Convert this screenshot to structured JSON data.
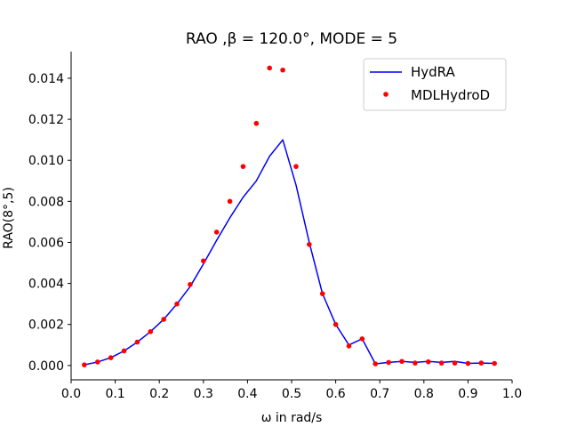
{
  "chart_data": {
    "type": "line",
    "title": "RAO ,β = 120.0°, MODE = 5",
    "xlabel": "ω in rad/s",
    "ylabel": "RAO(8°,5)",
    "xlim": [
      0.0,
      1.0
    ],
    "ylim": [
      -0.0007,
      0.0153
    ],
    "xticks": [
      0.0,
      0.1,
      0.2,
      0.3,
      0.4,
      0.5,
      0.6,
      0.7,
      0.8,
      0.9,
      1.0
    ],
    "xtick_labels": [
      "0.0",
      "0.1",
      "0.2",
      "0.3",
      "0.4",
      "0.5",
      "0.6",
      "0.7",
      "0.8",
      "0.9",
      "1.0"
    ],
    "yticks": [
      0.0,
      0.002,
      0.004,
      0.006,
      0.008,
      0.01,
      0.012,
      0.014
    ],
    "ytick_labels": [
      "0.000",
      "0.002",
      "0.004",
      "0.006",
      "0.008",
      "0.010",
      "0.012",
      "0.014"
    ],
    "legend_position": "top-right",
    "series": [
      {
        "name": "HydRA",
        "style": "line",
        "color": "#0000ff",
        "x": [
          0.03,
          0.06,
          0.09,
          0.12,
          0.15,
          0.18,
          0.21,
          0.24,
          0.27,
          0.3,
          0.33,
          0.36,
          0.39,
          0.42,
          0.45,
          0.48,
          0.51,
          0.54,
          0.57,
          0.6,
          0.63,
          0.66,
          0.69,
          0.72,
          0.75,
          0.78,
          0.81,
          0.84,
          0.87,
          0.9,
          0.93,
          0.96
        ],
        "y": [
          3e-05,
          0.00017,
          0.00038,
          0.00071,
          0.00114,
          0.00165,
          0.00225,
          0.003,
          0.00385,
          0.00495,
          0.0061,
          0.0072,
          0.0082,
          0.009,
          0.0102,
          0.011,
          0.0088,
          0.006,
          0.0035,
          0.002,
          0.001,
          0.0013,
          8e-05,
          0.00015,
          0.0002,
          0.00015,
          0.0002,
          0.00015,
          0.0002,
          0.0001,
          0.00012,
          0.0001
        ]
      },
      {
        "name": "MDLHydroD",
        "style": "scatter",
        "color": "#ff0000",
        "x": [
          0.03,
          0.06,
          0.09,
          0.12,
          0.15,
          0.18,
          0.21,
          0.24,
          0.27,
          0.3,
          0.33,
          0.36,
          0.39,
          0.42,
          0.45,
          0.48,
          0.51,
          0.54,
          0.57,
          0.6,
          0.63,
          0.66,
          0.69,
          0.72,
          0.75,
          0.78,
          0.81,
          0.84,
          0.87,
          0.9,
          0.93,
          0.96
        ],
        "y": [
          3e-05,
          0.00017,
          0.00038,
          0.00071,
          0.00114,
          0.00165,
          0.00225,
          0.003,
          0.00395,
          0.0051,
          0.0065,
          0.008,
          0.0097,
          0.0118,
          0.0145,
          0.0144,
          0.0097,
          0.0059,
          0.0035,
          0.002,
          0.00095,
          0.0013,
          8e-05,
          0.00015,
          0.0002,
          0.00012,
          0.00018,
          0.00012,
          0.00012,
          0.0001,
          0.00012,
          0.0001
        ]
      }
    ]
  }
}
